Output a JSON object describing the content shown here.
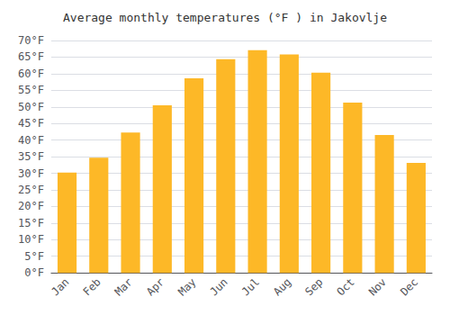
{
  "chart_data": {
    "type": "bar",
    "title": "Average monthly temperatures (°F ) in Jakovlje",
    "categories": [
      "Jan",
      "Feb",
      "Mar",
      "Apr",
      "May",
      "Jun",
      "Jul",
      "Aug",
      "Sep",
      "Oct",
      "Nov",
      "Dec"
    ],
    "values": [
      30.2,
      34.7,
      42.3,
      50.5,
      58.6,
      64.4,
      67.1,
      65.8,
      60.3,
      51.3,
      41.5,
      33.1
    ],
    "color": "#FDB827",
    "ylim": [
      0,
      70
    ],
    "yticks": [
      {
        "value": 0,
        "label": "0°F"
      },
      {
        "value": 5,
        "label": "5°F"
      },
      {
        "value": 10,
        "label": "10°F"
      },
      {
        "value": 15,
        "label": "15°F"
      },
      {
        "value": 20,
        "label": "20°F"
      },
      {
        "value": 25,
        "label": "25°F"
      },
      {
        "value": 30,
        "label": "30°F"
      },
      {
        "value": 35,
        "label": "35°F"
      },
      {
        "value": 40,
        "label": "40°F"
      },
      {
        "value": 45,
        "label": "45°F"
      },
      {
        "value": 50,
        "label": "50°F"
      },
      {
        "value": 55,
        "label": "55°F"
      },
      {
        "value": 60,
        "label": "60°F"
      },
      {
        "value": 65,
        "label": "65°F"
      },
      {
        "value": 70,
        "label": "70°F"
      }
    ],
    "grid": true
  }
}
